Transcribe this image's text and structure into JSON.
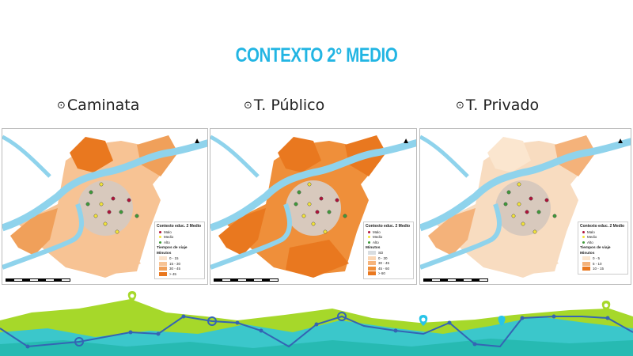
{
  "slide": {
    "title": "CONTEXTO 2° MEDIO",
    "title_color": "#22b5e3",
    "bullet_icon": "⊙"
  },
  "maps": [
    {
      "heading": "Caminata",
      "legend_title": "Contexto educ. 2 Medio",
      "points": [
        {
          "label": "Malo",
          "color": "#b0133a"
        },
        {
          "label": "Medio",
          "color": "#f2e33a"
        },
        {
          "label": "Alto",
          "color": "#3f9a3a"
        }
      ],
      "travel_title": "Tiempos de viaje",
      "unit": "Minutos",
      "classes": [
        {
          "label": "0 - 15",
          "color": "#fbe3cc"
        },
        {
          "label": "15 - 30",
          "color": "#f7c394"
        },
        {
          "label": "30 - 45",
          "color": "#f0a05a"
        },
        {
          "label": "> 45",
          "color": "#e9781f"
        }
      ]
    },
    {
      "heading": "T. Público",
      "legend_title": "Contexto educ. 2 Medio",
      "points": [
        {
          "label": "Malo",
          "color": "#b0133a"
        },
        {
          "label": "Medio",
          "color": "#f2e33a"
        },
        {
          "label": "Alto",
          "color": "#3f9a3a"
        }
      ],
      "travel_title": "",
      "unit": "Minutos",
      "classes": [
        {
          "label": "SD",
          "color": "#d9dde0"
        },
        {
          "label": "0 - 30",
          "color": "#fbd6b3"
        },
        {
          "label": "30 - 45",
          "color": "#f6b47c"
        },
        {
          "label": "45 - 60",
          "color": "#ef8f3a"
        },
        {
          "label": "> 60",
          "color": "#e9781f"
        }
      ]
    },
    {
      "heading": "T. Privado",
      "legend_title": "Contexto educ. 2 Medio",
      "points": [
        {
          "label": "Malo",
          "color": "#b0133a"
        },
        {
          "label": "Medio",
          "color": "#f2e33a"
        },
        {
          "label": "Alto",
          "color": "#3f9a3a"
        }
      ],
      "travel_title": "Tiempos de viaje",
      "unit": "Minutos",
      "classes": [
        {
          "label": "0 - 5",
          "color": "#fbe6cf"
        },
        {
          "label": "5 - 10",
          "color": "#f4b27a"
        },
        {
          "label": "10 - 15",
          "color": "#e9781f"
        }
      ]
    }
  ],
  "north_label": "N",
  "colors": {
    "river": "#8fd3ec",
    "green": "#a6d82a",
    "cyan": "#28c4e8",
    "line": "#3464b4"
  }
}
